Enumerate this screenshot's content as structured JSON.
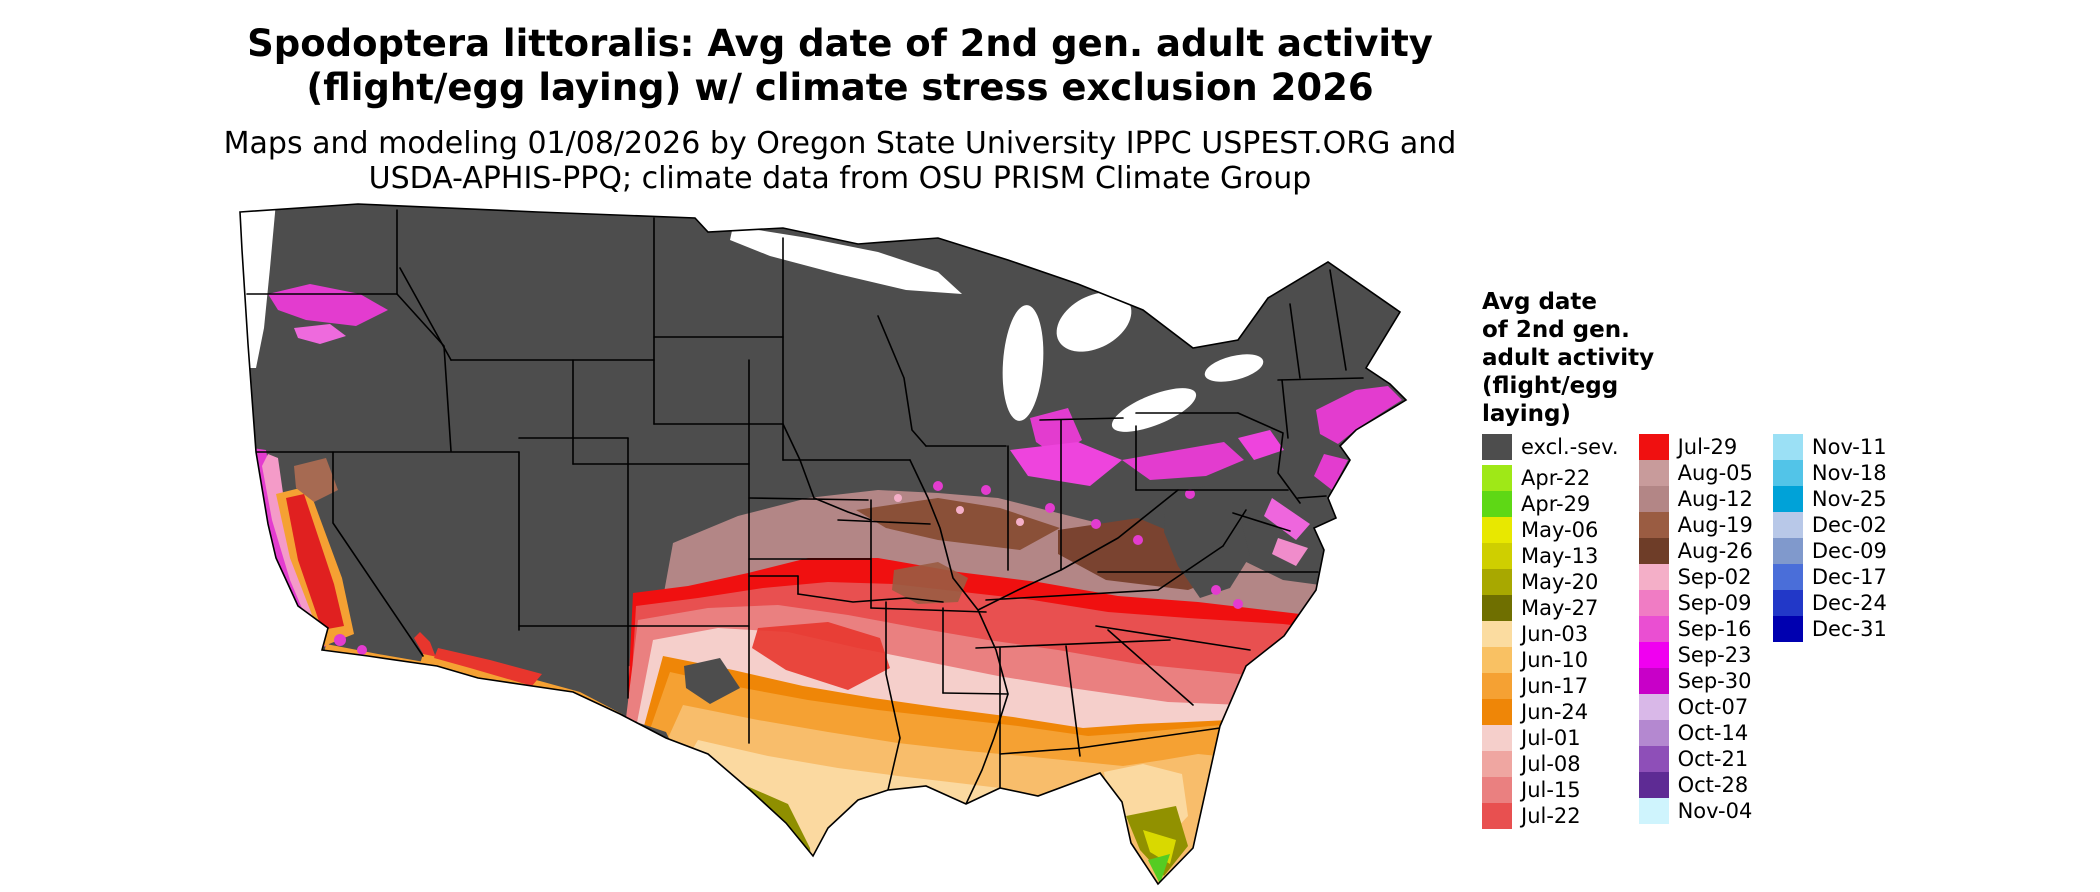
{
  "title": {
    "line1": "Spodoptera littoralis: Avg date of 2nd gen. adult activity",
    "line2": "(flight/egg laying) w/ climate stress exclusion 2026"
  },
  "subtitle": {
    "line1": "Maps and modeling 01/08/2026 by Oregon State University IPPC USPEST.ORG and",
    "line2": "USDA-APHIS-PPQ; climate data from OSU PRISM Climate Group"
  },
  "map": {
    "type": "choropleth-raster-map",
    "area": "contiguous United States",
    "excluded_color": "#4D4D4D"
  },
  "legend": {
    "title_lines": [
      "Avg date",
      "of 2nd gen.",
      "adult activity",
      "(flight/egg",
      "laying)"
    ],
    "columns": [
      {
        "entries": [
          {
            "label": "excl.-sev.",
            "color": "#4D4D4D",
            "gap_after": true
          },
          {
            "label": "Apr-22",
            "color": "#9FE817"
          },
          {
            "label": "Apr-29",
            "color": "#5ED815"
          },
          {
            "label": "May-06",
            "color": "#E8E800"
          },
          {
            "label": "May-13",
            "color": "#CFCF00"
          },
          {
            "label": "May-20",
            "color": "#A8A800"
          },
          {
            "label": "May-27",
            "color": "#6F6F00"
          },
          {
            "label": "Jun-03",
            "color": "#FBDCA0"
          },
          {
            "label": "Jun-10",
            "color": "#F9C163"
          },
          {
            "label": "Jun-17",
            "color": "#F5A133"
          },
          {
            "label": "Jun-24",
            "color": "#EF8607"
          },
          {
            "label": "Jul-01",
            "color": "#F5CFCB"
          },
          {
            "label": "Jul-08",
            "color": "#EFA6A1"
          },
          {
            "label": "Jul-15",
            "color": "#EA8080"
          },
          {
            "label": "Jul-22",
            "color": "#E85050"
          }
        ]
      },
      {
        "entries": [
          {
            "label": "Jul-29",
            "color": "#F01010"
          },
          {
            "label": "Aug-05",
            "color": "#C89B9B"
          },
          {
            "label": "Aug-12",
            "color": "#B38686"
          },
          {
            "label": "Aug-19",
            "color": "#9A5C42"
          },
          {
            "label": "Aug-26",
            "color": "#6E3D28"
          },
          {
            "label": "Sep-02",
            "color": "#F4AFC8"
          },
          {
            "label": "Sep-09",
            "color": "#F07CC4"
          },
          {
            "label": "Sep-16",
            "color": "#EA4FD2"
          },
          {
            "label": "Sep-23",
            "color": "#F000F0"
          },
          {
            "label": "Sep-30",
            "color": "#C800C8"
          },
          {
            "label": "Oct-07",
            "color": "#D9B8E8"
          },
          {
            "label": "Oct-14",
            "color": "#B488D0"
          },
          {
            "label": "Oct-21",
            "color": "#8E4FB8"
          },
          {
            "label": "Oct-28",
            "color": "#5E2B94"
          },
          {
            "label": "Nov-04",
            "color": "#CFF4FD"
          }
        ]
      },
      {
        "entries": [
          {
            "label": "Nov-11",
            "color": "#9BE0F5"
          },
          {
            "label": "Nov-18",
            "color": "#52C4E8"
          },
          {
            "label": "Nov-25",
            "color": "#00A2D8"
          },
          {
            "label": "Dec-02",
            "color": "#B8C8E8"
          },
          {
            "label": "Dec-09",
            "color": "#8099CC"
          },
          {
            "label": "Dec-17",
            "color": "#4A6ED9"
          },
          {
            "label": "Dec-24",
            "color": "#2238C8"
          },
          {
            "label": "Dec-31",
            "color": "#0000B0"
          }
        ]
      }
    ]
  }
}
